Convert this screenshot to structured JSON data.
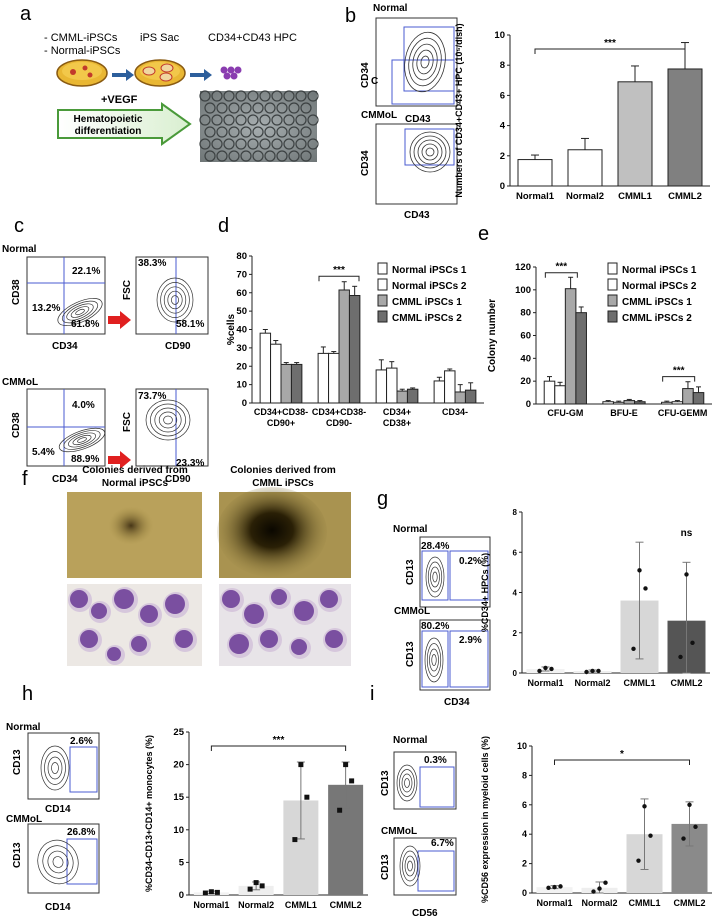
{
  "panel_letters": [
    "a",
    "b",
    "c",
    "d",
    "e",
    "f",
    "g",
    "h",
    "i"
  ],
  "a": {
    "lines": [
      "- CMML-iPSCs",
      "- Normal-iPSCs"
    ],
    "stage2": "iPS Sac",
    "stage3": "CD34+CD43 HPC",
    "vegf": "+VEGF",
    "arrow_text": [
      "Hematopoietic",
      "differentiation"
    ]
  },
  "b": {
    "flow_labels": {
      "normal": "Normal",
      "cmmol": "CMMoL",
      "y": "CD34",
      "x": "CD43",
      "c": "C"
    }
  },
  "c": {
    "row_labels": [
      "Normal",
      "CMMoL"
    ],
    "axes": {
      "cd38": "CD38",
      "cd34": "CD34",
      "fsc": "FSC",
      "cd90": "CD90"
    },
    "normal_pct": [
      "22.1%",
      "13.2%",
      "61.8%",
      "38.3%",
      "58.1%"
    ],
    "cmmol_pct": [
      "4.0%",
      "5.4%",
      "88.9%",
      "73.7%",
      "23.3%"
    ]
  },
  "f": {
    "left_title": [
      "Colonies derived from",
      "Normal iPSCs"
    ],
    "right_title": [
      "Colonies derived from",
      "CMML iPSCs"
    ]
  },
  "g": {
    "flow": {
      "normal": "Normal",
      "cmmol": "CMMoL",
      "y": "CD13",
      "x": "CD34",
      "pct": [
        "28.4%",
        "0.2%",
        "80.2%",
        "2.9%"
      ]
    }
  },
  "h": {
    "flow": {
      "normal": "Normal",
      "cmmol": "CMMoL",
      "y": "CD13",
      "x": "CD14",
      "pct": [
        "2.6%",
        "26.8%"
      ]
    }
  },
  "i": {
    "flow": {
      "normal": "Normal",
      "cmmol": "CMMoL",
      "y": "CD13",
      "x": "CD56",
      "pct": [
        "0.3%",
        "6.7%"
      ]
    }
  },
  "chart_data": [
    {
      "id": "b",
      "type": "bar",
      "categories": [
        "Normal1",
        "Normal2",
        "CMML1",
        "CMML2"
      ],
      "values": [
        1.75,
        2.4,
        6.9,
        7.75
      ],
      "errors": [
        0.3,
        0.75,
        1.05,
        1.75
      ],
      "ylabel": "Numbers of CD34+CD43+ HPC (10⁵/dish)",
      "ylim": [
        0,
        10
      ],
      "yticks": [
        0,
        2,
        4,
        6,
        8,
        10
      ],
      "colors": [
        "#ffffff",
        "#ffffff",
        "#c0c0c0",
        "#808080"
      ],
      "significance": "***"
    },
    {
      "id": "d",
      "type": "bar",
      "categories": [
        "CD34+CD38-CD90+",
        "CD34+CD38-CD90-",
        "CD34+CD38+",
        "CD34-"
      ],
      "series": [
        {
          "name": "Normal iPSCs 1",
          "values": [
            38,
            27,
            18,
            12
          ],
          "errors": [
            2,
            3.5,
            5.5,
            2
          ]
        },
        {
          "name": "Normal iPSCs 2",
          "values": [
            32,
            27,
            19,
            17.5
          ],
          "errors": [
            2,
            1,
            3.5,
            1
          ]
        },
        {
          "name": "CMML iPSCs 1",
          "values": [
            21,
            61.5,
            6.5,
            6
          ],
          "errors": [
            1,
            4.5,
            1,
            4
          ]
        },
        {
          "name": "CMML iPSCs 2",
          "values": [
            21,
            58.5,
            7.5,
            7
          ],
          "errors": [
            1,
            5,
            0.7,
            4
          ]
        }
      ],
      "ylabel": "%cells",
      "ylim": [
        0,
        80
      ],
      "yticks": [
        0,
        10,
        20,
        30,
        40,
        50,
        60,
        70,
        80
      ],
      "colors": [
        "#ffffff",
        "#ffffff",
        "#a8a8a8",
        "#6e6e6e"
      ],
      "significance": "***"
    },
    {
      "id": "e",
      "type": "bar",
      "categories": [
        "CFU-GM",
        "BFU-E",
        "CFU-GEMM"
      ],
      "series": [
        {
          "name": "Normal iPSCs 1",
          "values": [
            20,
            2,
            1.5
          ],
          "errors": [
            4,
            1,
            1
          ]
        },
        {
          "name": "Normal  iPSCs 2",
          "values": [
            16,
            1.5,
            2
          ],
          "errors": [
            3,
            1,
            1
          ]
        },
        {
          "name": "CMML iPSCs 1",
          "values": [
            101,
            3,
            13.5
          ],
          "errors": [
            10,
            1,
            6
          ]
        },
        {
          "name": "CMML iPSCs 2",
          "values": [
            80,
            2,
            10
          ],
          "errors": [
            5,
            1,
            5
          ]
        }
      ],
      "ylabel": "Colony number",
      "ylim": [
        0,
        120
      ],
      "yticks": [
        0,
        20,
        40,
        60,
        80,
        100,
        120
      ],
      "colors": [
        "#ffffff",
        "#ffffff",
        "#a8a8a8",
        "#6e6e6e"
      ],
      "significance": "***"
    },
    {
      "id": "g",
      "type": "bar",
      "categories": [
        "Normal1",
        "Normal2",
        "CMML1",
        "CMML2"
      ],
      "values": [
        0.2,
        0.1,
        3.6,
        2.6
      ],
      "errors": [
        0.1,
        0.05,
        2.9,
        2.9
      ],
      "points": [
        [
          0.1,
          0.2,
          0.25
        ],
        [
          0.05,
          0.1,
          0.1
        ],
        [
          1.2,
          4.2,
          5.1
        ],
        [
          0.8,
          1.5,
          4.9
        ]
      ],
      "ylabel": "%CD34+ HPCs (%)",
      "ylim": [
        0,
        8
      ],
      "yticks": [
        0,
        2,
        4,
        6,
        8
      ],
      "colors": [
        "#f2f2f2",
        "#eeeeee",
        "#d7d7d7",
        "#555555"
      ],
      "significance": "ns"
    },
    {
      "id": "h",
      "type": "bar",
      "categories": [
        "Normal1",
        "Normal2",
        "CMML1",
        "CMML2"
      ],
      "values": [
        0.4,
        1.4,
        14.5,
        16.9
      ],
      "errors": [
        0.2,
        0.6,
        5.9,
        3.5
      ],
      "points": [
        [
          0.3,
          0.4,
          0.5
        ],
        [
          0.9,
          1.4,
          1.9
        ],
        [
          8.5,
          15.0,
          20.0
        ],
        [
          13.0,
          17.5,
          20.0
        ]
      ],
      "ylabel": "%CD34-CD13+CD14+ monocytes (%)",
      "ylim": [
        0,
        25
      ],
      "yticks": [
        0,
        5,
        10,
        15,
        20,
        25
      ],
      "colors": [
        "#f2f2f2",
        "#eeeeee",
        "#d7d7d7",
        "#777777"
      ],
      "significance": "***"
    },
    {
      "id": "i",
      "type": "bar",
      "categories": [
        "Normal1",
        "Normal2",
        "CMML1",
        "CMML2"
      ],
      "values": [
        0.4,
        0.35,
        4.0,
        4.7
      ],
      "errors": [
        0.1,
        0.4,
        2.4,
        1.5
      ],
      "points": [
        [
          0.35,
          0.45,
          0.4
        ],
        [
          0.1,
          0.7,
          0.3
        ],
        [
          2.2,
          3.9,
          5.9
        ],
        [
          3.7,
          4.5,
          6.0
        ]
      ],
      "ylabel": "%CD56 expression in myeloid cells (%)",
      "ylim": [
        0,
        10
      ],
      "yticks": [
        0,
        2,
        4,
        6,
        8,
        10
      ],
      "colors": [
        "#f2f2f2",
        "#eeeeee",
        "#d7d7d7",
        "#8a8a8a"
      ],
      "significance": "*"
    }
  ]
}
